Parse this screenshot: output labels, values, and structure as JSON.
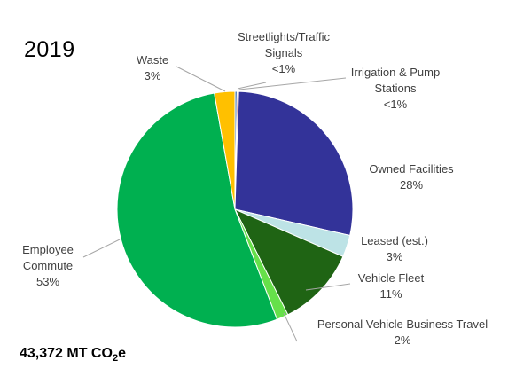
{
  "chart_data": {
    "type": "pie",
    "title": "2019",
    "total_text": "43,372 MT CO",
    "total_sub": "2",
    "total_suffix": "e",
    "start_angle_deg": 0,
    "direction": "clockwise",
    "slices": [
      {
        "name": "Streetlights/Traffic Signals",
        "label_lines": [
          "Streetlights/Traffic",
          "Signals",
          "<1%"
        ],
        "value": 0.3,
        "color": "#4f81bd"
      },
      {
        "name": "Irrigation & Pump Stations",
        "label_lines": [
          "Irrigation & Pump",
          "Stations",
          "<1%"
        ],
        "value": 0.2,
        "color": "#c0504d"
      },
      {
        "name": "Owned Facilities",
        "label_lines": [
          "Owned  Facilities",
          "28%"
        ],
        "value": 28,
        "color": "#333399"
      },
      {
        "name": "Leased (est.)",
        "label_lines": [
          "Leased (est.)",
          "3%"
        ],
        "value": 3,
        "color": "#bde3e6"
      },
      {
        "name": "Vehicle Fleet",
        "label_lines": [
          "Vehicle Fleet",
          "11%"
        ],
        "value": 11,
        "color": "#1f6414"
      },
      {
        "name": "Personal Vehicle Business Travel",
        "label_lines": [
          "Personal Vehicle Business Travel",
          "2%"
        ],
        "value": 1.6,
        "color": "#66e04a"
      },
      {
        "name": "Employee Commute",
        "label_lines": [
          "Employee",
          "Commute",
          "53%"
        ],
        "value": 52.9,
        "color": "#00b050"
      },
      {
        "name": "Waste",
        "label_lines": [
          "Waste",
          "3%"
        ],
        "value": 2.8,
        "color": "#ffc000"
      }
    ]
  }
}
